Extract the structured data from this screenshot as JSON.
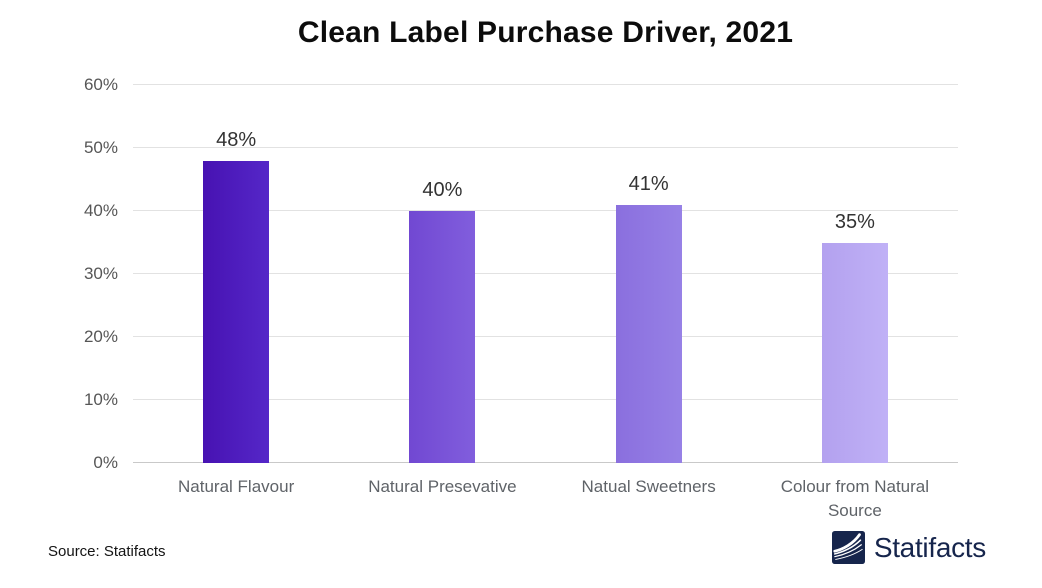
{
  "title": "Clean Label Purchase Driver, 2021",
  "source_note": "Source: Statifacts",
  "brand": {
    "name": "Statifacts",
    "logo_icon": "waves-square-icon",
    "color": "#16254c"
  },
  "chart_data": {
    "type": "bar",
    "title": "Clean Label Purchase Driver, 2021",
    "categories": [
      "Natural Flavour",
      "Natural Presevative",
      "Natual Sweetners",
      "Colour from Natural Source"
    ],
    "values": [
      48,
      40,
      41,
      35
    ],
    "value_labels": [
      "48%",
      "40%",
      "41%",
      "35%"
    ],
    "xlabel": "",
    "ylabel": "",
    "ylim": [
      0,
      60
    ],
    "yticks": [
      "0%",
      "10%",
      "20%",
      "30%",
      "40%",
      "50%",
      "60%"
    ],
    "grid": true,
    "legend": false,
    "bar_colors": [
      [
        "#4712b2",
        "#5527c8"
      ],
      [
        "#7148d2",
        "#815edd"
      ],
      [
        "#8a6fde",
        "#9781e6"
      ],
      [
        "#b3a1ef",
        "#c0b1f6"
      ]
    ]
  }
}
